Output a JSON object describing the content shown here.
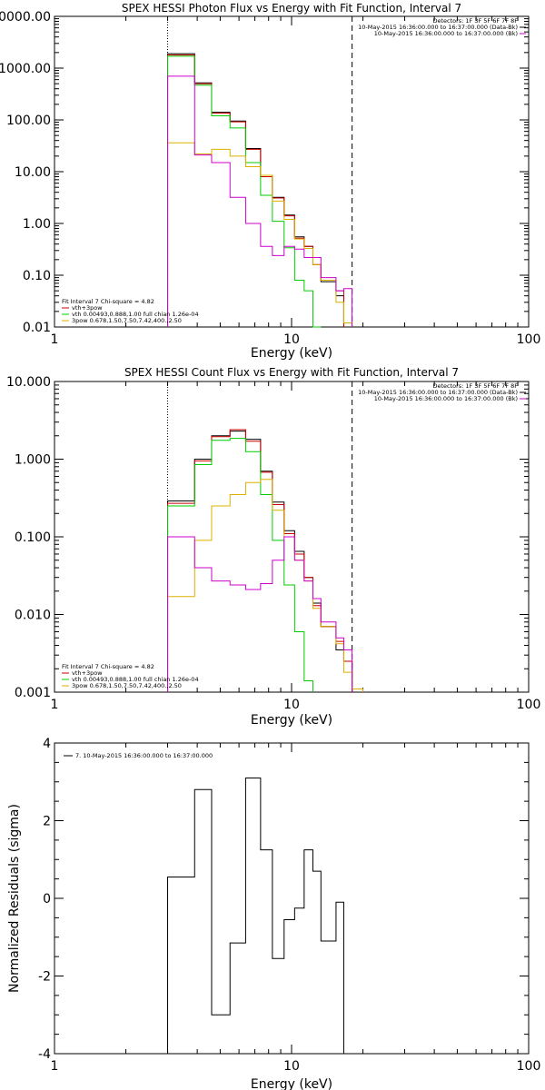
{
  "chart_data": [
    {
      "type": "line",
      "title": "SPEX HESSI Photon Flux vs Energy with Fit Function, Interval 7",
      "xlabel": "Energy (keV)",
      "ylabel": "",
      "xscale": "log",
      "yscale": "log",
      "xlim": [
        1,
        100
      ],
      "ylim": [
        0.01,
        10000
      ],
      "xticks": [
        {
          "v": 1,
          "label": "1"
        },
        {
          "v": 10,
          "label": "10"
        },
        {
          "v": 100,
          "label": "100"
        }
      ],
      "yticks": [
        {
          "v": 0.01,
          "label": "0.01"
        },
        {
          "v": 0.1,
          "label": "0.10"
        },
        {
          "v": 1,
          "label": "1.00"
        },
        {
          "v": 10,
          "label": "10.00"
        },
        {
          "v": 100,
          "label": "100.00"
        },
        {
          "v": 1000,
          "label": "1000.00"
        },
        {
          "v": 10000,
          "label": "10000.00"
        }
      ],
      "vlines": [
        {
          "x": 3,
          "style": "dotted"
        },
        {
          "x": 18,
          "style": "dashed"
        }
      ],
      "header_lines": [
        "Detectors: 1F 3F 5F 6F 7F 8F",
        "10-May-2015 16:36:00.000 to 16:37:00.000 (Data-Bk)",
        "10-May-2015 16:36:00.000 to 16:37:00.000 (Bk)"
      ],
      "header_colors": [
        "",
        "#000000",
        "#cc00cc"
      ],
      "legend_title": "Fit Interval 7   Chi-square = 4.82",
      "legend_position": "bottom-left",
      "legend": [
        {
          "label": "vth+3pow",
          "color": "#cc0000"
        },
        {
          "label": "vth 0.00493,0.888,1.00  full chian 1.26e-04",
          "color": "#00cc00"
        },
        {
          "label": "3pow 0.678,1.50,7.50,7.42,400.,2.50",
          "color": "#ddb000"
        }
      ],
      "bin_edges": [
        3.0,
        3.9,
        4.6,
        5.5,
        6.4,
        7.4,
        8.3,
        9.3,
        10.3,
        11.3,
        12.3,
        13.3,
        15.4,
        16.6,
        18.0
      ],
      "series": [
        {
          "name": "Data-Bk",
          "color": "#000000",
          "values": [
            1900,
            520,
            140,
            95,
            28,
            8.5,
            3.2,
            1.45,
            0.55,
            0.36,
            0.16,
            0.075,
            0.04,
            null
          ]
        },
        {
          "name": "vth+3pow",
          "color": "#cc0000",
          "values": [
            1800,
            500,
            135,
            92,
            27,
            8,
            3.1,
            1.4,
            0.52,
            0.36,
            0.16,
            0.08,
            0.05,
            null
          ]
        },
        {
          "name": "vth",
          "color": "#00cc00",
          "values": [
            1700,
            470,
            120,
            70,
            15,
            3.5,
            1.1,
            0.34,
            0.08,
            0.05,
            0.01,
            null,
            null,
            null
          ]
        },
        {
          "name": "3pow",
          "color": "#ddb000",
          "values": [
            36,
            22,
            27,
            20,
            12.5,
            8.5,
            2.7,
            1.2,
            0.5,
            0.33,
            0.16,
            0.08,
            0.03,
            0.012
          ]
        },
        {
          "name": "Bk",
          "color": "#cc00cc",
          "values": [
            700,
            21,
            15,
            3.2,
            1.0,
            0.36,
            0.24,
            0.36,
            0.32,
            0.22,
            0.22,
            0.09,
            0.05,
            0.055
          ]
        }
      ]
    },
    {
      "type": "line",
      "title": "SPEX HESSI Count Flux vs Energy with Fit Function, Interval 7",
      "xlabel": "Energy (keV)",
      "ylabel": "",
      "xscale": "log",
      "yscale": "log",
      "xlim": [
        1,
        100
      ],
      "ylim": [
        0.001,
        10
      ],
      "xticks": [
        {
          "v": 1,
          "label": "1"
        },
        {
          "v": 10,
          "label": "10"
        },
        {
          "v": 100,
          "label": "100"
        }
      ],
      "yticks": [
        {
          "v": 0.001,
          "label": "0.001"
        },
        {
          "v": 0.01,
          "label": "0.010"
        },
        {
          "v": 0.1,
          "label": "0.100"
        },
        {
          "v": 1,
          "label": "1.000"
        },
        {
          "v": 10,
          "label": "10.000"
        }
      ],
      "vlines": [
        {
          "x": 3,
          "style": "dotted"
        },
        {
          "x": 18,
          "style": "dashed"
        }
      ],
      "header_lines": [
        "Detectors: 1F 3F 5F 6F 7F 8F",
        "10-May-2015 16:36:00.000 to 16:37:00.000 (Data-Bk)",
        "10-May-2015 16:36:00.000 to 16:37:00.000 (Bk)"
      ],
      "header_colors": [
        "",
        "#000000",
        "#cc00cc"
      ],
      "legend_title": "Fit Interval 7   Chi-square = 4.82",
      "legend_position": "bottom-left",
      "legend": [
        {
          "label": "vth+3pow",
          "color": "#cc0000"
        },
        {
          "label": "vth 0.00493,0.888,1.00  full chian 1.26e-04",
          "color": "#00cc00"
        },
        {
          "label": "3pow 0.678,1.50,7.50,7.42,400.,2.50",
          "color": "#ddb000"
        }
      ],
      "bin_edges": [
        3.0,
        3.9,
        4.6,
        5.5,
        6.4,
        7.4,
        8.3,
        9.3,
        10.3,
        11.3,
        12.3,
        13.3,
        15.4,
        16.6,
        18.0,
        20.0
      ],
      "series": [
        {
          "name": "Data-Bk",
          "color": "#000000",
          "values": [
            0.29,
            1.0,
            2.0,
            2.3,
            1.8,
            0.7,
            0.28,
            0.12,
            0.065,
            0.03,
            0.014,
            0.007,
            0.0035,
            0.0025,
            null
          ]
        },
        {
          "name": "vth+3pow",
          "color": "#cc0000",
          "values": [
            0.27,
            0.95,
            1.95,
            2.4,
            1.7,
            0.68,
            0.26,
            0.11,
            0.06,
            0.03,
            0.013,
            0.007,
            0.0045,
            0.0025,
            null
          ]
        },
        {
          "name": "vth",
          "color": "#00cc00",
          "values": [
            0.25,
            0.85,
            1.75,
            1.85,
            1.25,
            0.35,
            0.09,
            0.024,
            0.006,
            0.0014,
            null,
            null,
            null,
            null,
            null
          ]
        },
        {
          "name": "3pow",
          "color": "#ddb000",
          "values": [
            0.017,
            0.09,
            0.25,
            0.35,
            0.5,
            0.55,
            0.22,
            0.1,
            0.05,
            0.027,
            0.012,
            0.007,
            0.0042,
            0.0018,
            0.0011
          ]
        },
        {
          "name": "Bk",
          "color": "#cc00cc",
          "values": [
            0.1,
            0.04,
            0.027,
            0.024,
            0.021,
            0.025,
            0.05,
            0.1,
            0.05,
            0.027,
            0.016,
            0.008,
            0.005,
            0.0035,
            null
          ]
        }
      ]
    },
    {
      "type": "line",
      "title": "",
      "xlabel": "Energy (keV)",
      "ylabel": "Normalized Residuals (sigma)",
      "xscale": "log",
      "yscale": "linear",
      "xlim": [
        1,
        100
      ],
      "ylim": [
        -4,
        4
      ],
      "xticks": [
        {
          "v": 1,
          "label": "1"
        },
        {
          "v": 10,
          "label": "10"
        },
        {
          "v": 100,
          "label": "100"
        }
      ],
      "yticks": [
        {
          "v": -4,
          "label": "-4"
        },
        {
          "v": -2,
          "label": "-2"
        },
        {
          "v": 0,
          "label": "0"
        },
        {
          "v": 2,
          "label": "2"
        },
        {
          "v": 4,
          "label": "4"
        }
      ],
      "legend_position": "top-left",
      "legend": [
        {
          "label": "7. 10-May-2015 16:36:00.000 to 16:37:00.000",
          "color": "#000000"
        }
      ],
      "bin_edges": [
        3.0,
        3.9,
        4.6,
        5.5,
        6.4,
        7.4,
        8.3,
        9.3,
        10.3,
        11.3,
        12.3,
        13.3,
        15.4,
        16.6,
        18.0
      ],
      "series": [
        {
          "name": "7. 10-May-2015 16:36:00.000 to 16:37:00.000",
          "color": "#000000",
          "values": [
            0.55,
            2.8,
            -3.0,
            -1.15,
            3.1,
            1.25,
            -1.55,
            -0.55,
            -0.25,
            1.25,
            0.7,
            -1.1,
            -0.1,
            null
          ]
        }
      ],
      "drop_edges": true
    }
  ]
}
